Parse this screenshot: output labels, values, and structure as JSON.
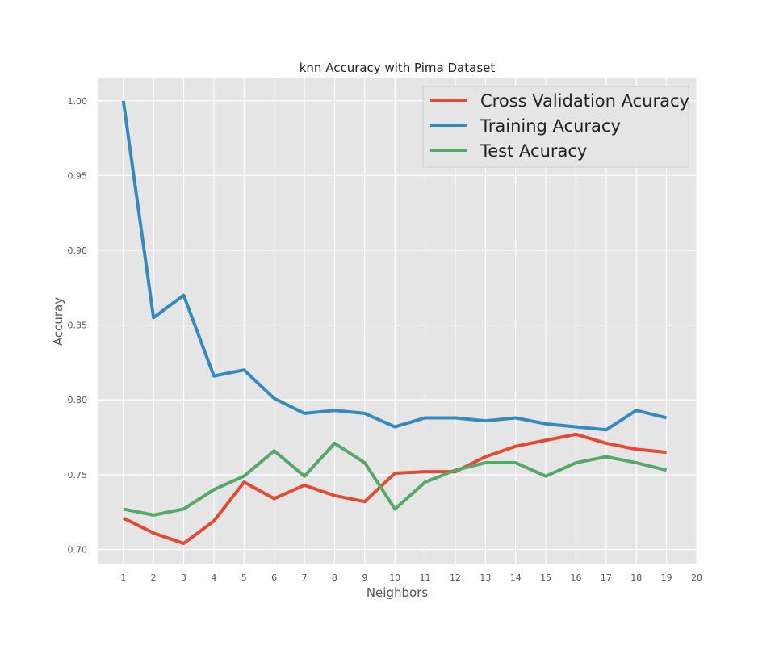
{
  "chart_data": {
    "type": "line",
    "title": "knn Accuracy with Pima Dataset",
    "xlabel": "Neighbors",
    "ylabel": "Accuray",
    "xlim": [
      0.15,
      20.0
    ],
    "ylim": [
      0.69,
      1.015
    ],
    "xticks": [
      1,
      2,
      3,
      4,
      5,
      6,
      7,
      8,
      9,
      10,
      11,
      12,
      13,
      14,
      15,
      16,
      17,
      18,
      19,
      20
    ],
    "yticks": [
      0.7,
      0.75,
      0.8,
      0.85,
      0.9,
      0.95,
      1.0
    ],
    "ytick_labels": [
      "0.70",
      "0.75",
      "0.80",
      "0.85",
      "0.90",
      "0.95",
      "1.00"
    ],
    "grid": true,
    "legend_position": "top-right",
    "x": [
      1,
      2,
      3,
      4,
      5,
      6,
      7,
      8,
      9,
      10,
      11,
      12,
      13,
      14,
      15,
      16,
      17,
      18,
      19
    ],
    "series": [
      {
        "name": "Cross Validation Acuracy",
        "color": "#e24a33",
        "values": [
          0.721,
          0.711,
          0.704,
          0.719,
          0.745,
          0.734,
          0.743,
          0.736,
          0.732,
          0.751,
          0.752,
          0.752,
          0.762,
          0.769,
          0.773,
          0.777,
          0.771,
          0.767,
          0.765
        ]
      },
      {
        "name": "Training Acuracy",
        "color": "#348abd",
        "values": [
          1.0,
          0.855,
          0.87,
          0.816,
          0.82,
          0.801,
          0.791,
          0.793,
          0.791,
          0.782,
          0.788,
          0.788,
          0.786,
          0.788,
          0.784,
          0.782,
          0.78,
          0.793,
          0.788
        ]
      },
      {
        "name": "Test Acuracy",
        "color": "#55a868",
        "values": [
          0.727,
          0.723,
          0.727,
          0.74,
          0.749,
          0.766,
          0.749,
          0.771,
          0.758,
          0.727,
          0.745,
          0.753,
          0.758,
          0.758,
          0.749,
          0.758,
          0.762,
          0.758,
          0.753
        ]
      }
    ]
  }
}
